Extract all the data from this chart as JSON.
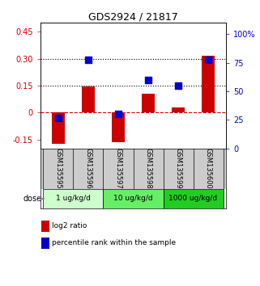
{
  "title": "GDS2924 / 21817",
  "samples": [
    "GSM135595",
    "GSM135596",
    "GSM135597",
    "GSM135598",
    "GSM135599",
    "GSM135600"
  ],
  "log2_ratio": [
    -0.175,
    0.145,
    -0.165,
    0.105,
    0.03,
    0.315
  ],
  "percentile_rank": [
    27,
    78,
    30,
    60,
    55,
    78
  ],
  "dose_groups": [
    {
      "label": "1 ug/kg/d",
      "samples": [
        0,
        1
      ],
      "color": "#ccffcc"
    },
    {
      "label": "10 ug/kg/d",
      "samples": [
        2,
        3
      ],
      "color": "#66ee66"
    },
    {
      "label": "1000 ug/kg/d",
      "samples": [
        4,
        5
      ],
      "color": "#22cc22"
    }
  ],
  "ylim_left": [
    -0.2,
    0.5
  ],
  "ylim_right": [
    0,
    110
  ],
  "yticks_left": [
    -0.15,
    0.0,
    0.15,
    0.3,
    0.45
  ],
  "yticks_right": [
    0,
    25,
    50,
    75,
    100
  ],
  "ytick_labels_left": [
    "-0.15",
    "0",
    "0.15",
    "0.30",
    "0.45"
  ],
  "ytick_labels_right": [
    "0",
    "25",
    "50",
    "75",
    "100%"
  ],
  "hlines": [
    0.15,
    0.3
  ],
  "bar_color": "#cc0000",
  "dot_color": "#0000cc",
  "zero_line_color": "#cc0000",
  "sample_box_color": "#cccccc",
  "legend_red_label": "log2 ratio",
  "legend_blue_label": "percentile rank within the sample",
  "dose_label": "dose",
  "left_axis_color": "#cc0000",
  "right_axis_color": "#0000cc"
}
